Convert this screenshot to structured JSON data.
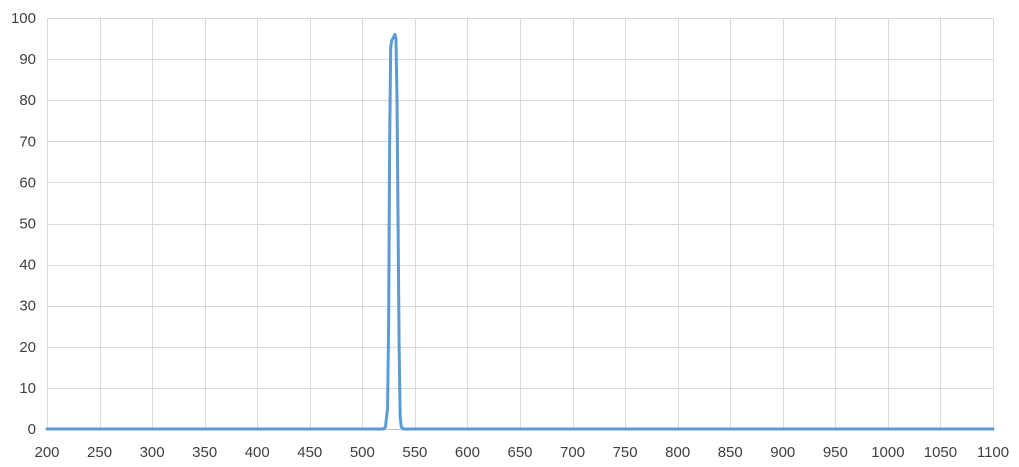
{
  "chart_data": {
    "type": "line",
    "title": "",
    "xlabel": "",
    "ylabel": "",
    "xlim": [
      200,
      1100
    ],
    "ylim": [
      0,
      100
    ],
    "x_ticks": [
      200,
      250,
      300,
      350,
      400,
      450,
      500,
      550,
      600,
      650,
      700,
      750,
      800,
      850,
      900,
      950,
      1000,
      1050,
      1100
    ],
    "y_ticks": [
      0,
      10,
      20,
      30,
      40,
      50,
      60,
      70,
      80,
      90,
      100
    ],
    "grid": true,
    "legend": "none",
    "series": [
      {
        "color": "#5b9bd5",
        "points": [
          [
            200,
            0
          ],
          [
            520,
            0
          ],
          [
            522,
            0.5
          ],
          [
            524,
            5
          ],
          [
            525,
            25
          ],
          [
            526,
            70
          ],
          [
            527,
            93
          ],
          [
            528,
            94.5
          ],
          [
            530,
            95.5
          ],
          [
            531,
            96
          ],
          [
            532,
            95
          ],
          [
            533,
            80
          ],
          [
            534,
            50
          ],
          [
            535,
            20
          ],
          [
            536,
            3
          ],
          [
            537,
            0.5
          ],
          [
            539,
            0
          ],
          [
            1100,
            0
          ]
        ]
      }
    ],
    "grid_color": "#d9d9d9",
    "axis_color": "#bfbfbf"
  }
}
